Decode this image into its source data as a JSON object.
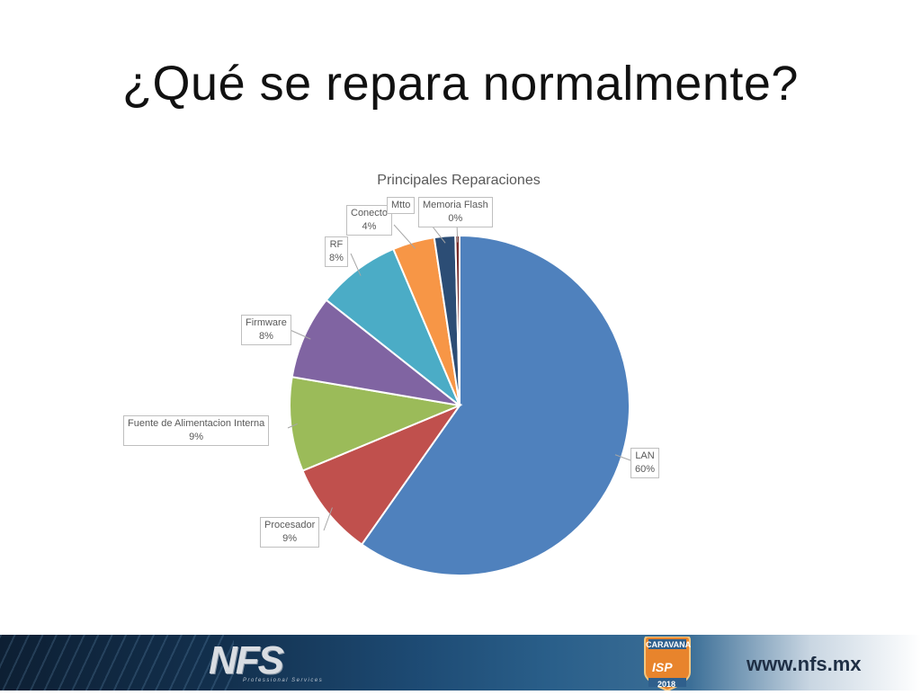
{
  "slide": {
    "title": "¿Qué se repara normalmente?"
  },
  "chart_data": {
    "type": "pie",
    "title": "Principales Reparaciones",
    "categories": [
      "LAN",
      "Procesador",
      "Fuente de Alimentacion Interna",
      "Firmware",
      "RF",
      "Conectores",
      "Mtto",
      "Memoria Flash"
    ],
    "values": [
      60,
      9,
      9,
      8,
      8,
      4,
      2,
      0.4
    ],
    "labels": [
      {
        "name": "LAN",
        "pct": "60%"
      },
      {
        "name": "Procesador",
        "pct": "9%"
      },
      {
        "name": "Fuente de Alimentacion Interna",
        "pct": "9%"
      },
      {
        "name": "Firmware",
        "pct": "8%"
      },
      {
        "name": "RF",
        "pct": "8%"
      },
      {
        "name": "Conecto",
        "pct": "4%"
      },
      {
        "name": "Mtto",
        "pct": ""
      },
      {
        "name": "Memoria Flash",
        "pct": "0%"
      }
    ],
    "colors": [
      "#4f81bd",
      "#c0504d",
      "#9bbb59",
      "#8064a2",
      "#4bacc6",
      "#f79646",
      "#2c4d75",
      "#772c2a"
    ],
    "start_angle_deg": 0,
    "direction": "clockwise",
    "legend": "none"
  },
  "footer": {
    "logo_text": "NFS",
    "logo_subtitle": "Professional Services",
    "badge_top": "CARAVANA",
    "badge_mid": "ISP",
    "badge_year": "2018",
    "url": "www.nfs.mx"
  }
}
